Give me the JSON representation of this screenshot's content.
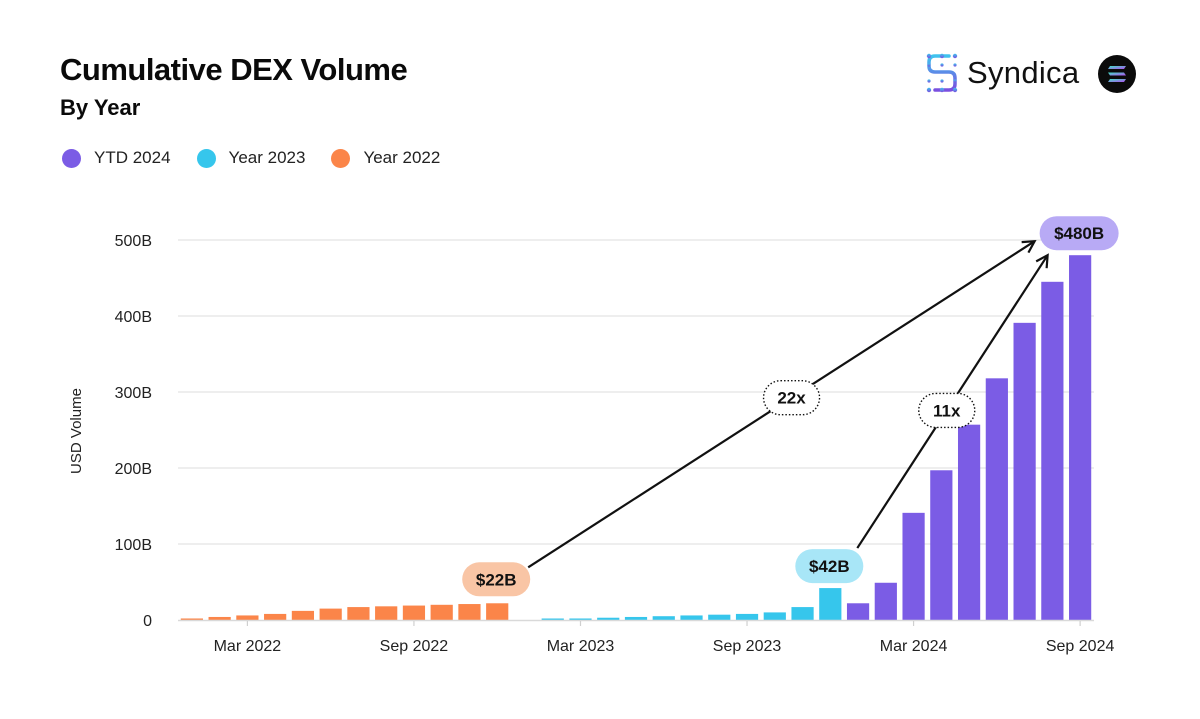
{
  "header": {
    "title": "Cumulative DEX Volume",
    "subtitle": "By Year",
    "brand": "Syndica",
    "brand_icon": "syndica-logo-icon",
    "partner_icon": "solana-logo-icon"
  },
  "colors": {
    "ytd_2024": "#7B5CE5",
    "year_2023": "#36C6EC",
    "year_2022": "#FB8549",
    "pill_2024": "#B8AAF5",
    "pill_2023": "#A8E6F7",
    "pill_2022": "#F9C5A5",
    "grid": "#E3E3E3"
  },
  "chart_data": {
    "type": "bar",
    "title": "Cumulative DEX Volume",
    "subtitle": "By Year",
    "xlabel": "",
    "ylabel": "USD Volume",
    "ylim": [
      0,
      500
    ],
    "y_unit": "B",
    "y_ticks": [
      "0",
      "100B",
      "200B",
      "300B",
      "400B",
      "500B"
    ],
    "y_tick_values": [
      0,
      100,
      200,
      300,
      400,
      500
    ],
    "x_ticks": [
      {
        "label": "Mar 2022",
        "index": 2
      },
      {
        "label": "Sep 2022",
        "index": 8
      },
      {
        "label": "Mar 2023",
        "index": 14
      },
      {
        "label": "Sep 2023",
        "index": 20
      },
      {
        "label": "Mar 2024",
        "index": 26
      },
      {
        "label": "Sep 2024",
        "index": 32
      }
    ],
    "grid": true,
    "legend_position": "top-left",
    "legend": [
      "YTD 2024",
      "Year 2023",
      "Year 2022"
    ],
    "series": [
      {
        "name": "Year 2022",
        "color_key": "year_2022",
        "start_index": 0,
        "months": [
          "Jan 2022",
          "Feb 2022",
          "Mar 2022",
          "Apr 2022",
          "May 2022",
          "Jun 2022",
          "Jul 2022",
          "Aug 2022",
          "Sep 2022",
          "Oct 2022",
          "Nov 2022",
          "Dec 2022"
        ],
        "values": [
          2,
          4,
          6,
          8,
          12,
          15,
          17,
          18,
          19,
          20,
          21,
          22
        ]
      },
      {
        "name": "Year 2023",
        "color_key": "year_2023",
        "start_index": 12,
        "months": [
          "Jan 2023",
          "Feb 2023",
          "Mar 2023",
          "Apr 2023",
          "May 2023",
          "Jun 2023",
          "Jul 2023",
          "Aug 2023",
          "Sep 2023",
          "Oct 2023",
          "Nov 2023",
          "Dec 2023"
        ],
        "values": [
          0,
          1,
          2,
          3,
          4,
          5,
          6,
          7,
          8,
          10,
          17,
          42
        ]
      },
      {
        "name": "YTD 2024",
        "color_key": "ytd_2024",
        "start_index": 24,
        "months": [
          "Jan 2024",
          "Feb 2024",
          "Mar 2024",
          "Apr 2024",
          "May 2024",
          "Jun 2024",
          "Jul 2024",
          "Aug 2024",
          "Sep 2024"
        ],
        "values": [
          22,
          49,
          141,
          197,
          257,
          318,
          391,
          445,
          480
        ]
      }
    ],
    "annotations": [
      {
        "type": "pill",
        "text": "$22B",
        "series": "Year 2022",
        "index": 11,
        "color_key": "pill_2022"
      },
      {
        "type": "pill",
        "text": "$42B",
        "series": "Year 2023",
        "index": 23,
        "color_key": "pill_2023"
      },
      {
        "type": "pill",
        "text": "$480B",
        "series": "YTD 2024",
        "index": 32,
        "color_key": "pill_2024"
      },
      {
        "type": "multiplier",
        "text": "22x",
        "from": "$22B",
        "to": "$480B"
      },
      {
        "type": "multiplier",
        "text": "11x",
        "from": "$42B",
        "to": "$480B"
      }
    ]
  }
}
